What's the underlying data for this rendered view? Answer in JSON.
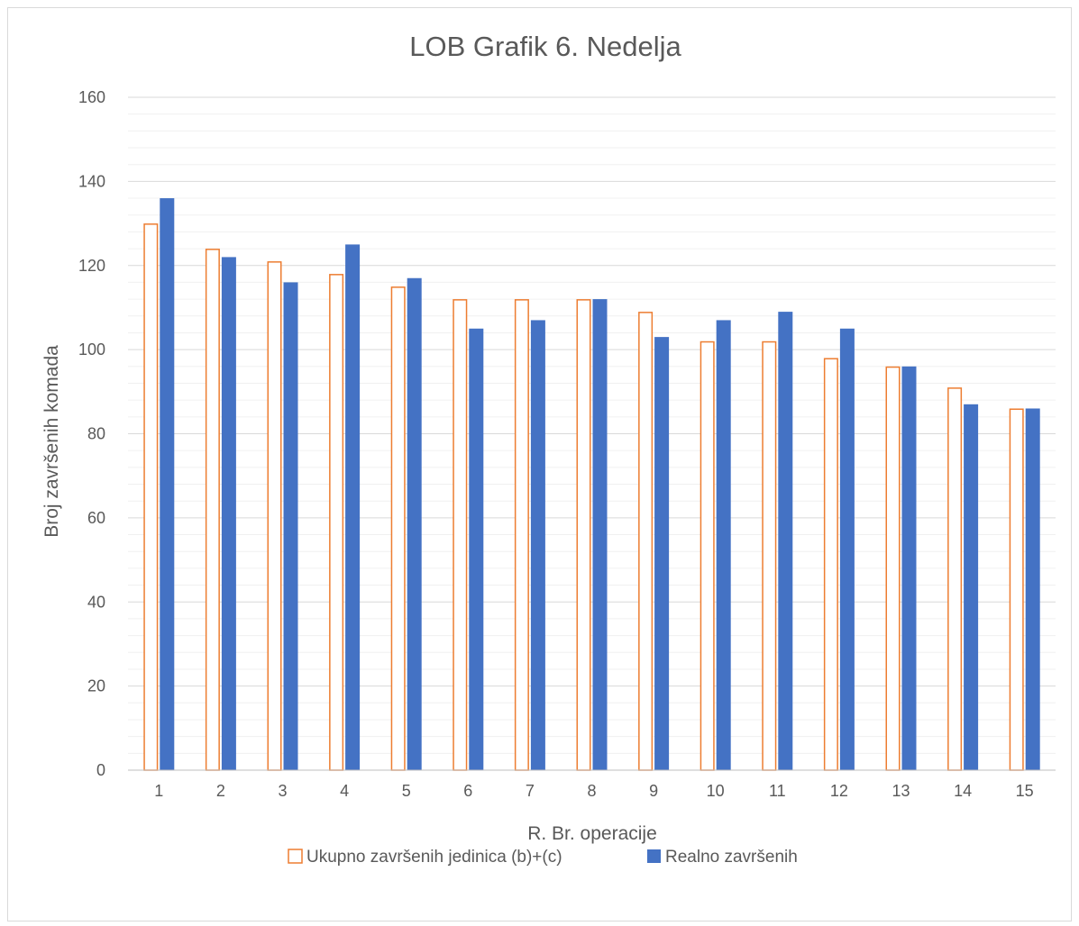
{
  "chart_data": {
    "type": "bar",
    "title": "LOB Grafik 6. Nedelja",
    "xlabel": "R. Br. operacije",
    "ylabel": "Broj završenih komada",
    "categories": [
      "1",
      "2",
      "3",
      "4",
      "5",
      "6",
      "7",
      "8",
      "9",
      "10",
      "11",
      "12",
      "13",
      "14",
      "15"
    ],
    "ylim": [
      0,
      160
    ],
    "yticks": [
      "0",
      "20",
      "40",
      "60",
      "80",
      "100",
      "120",
      "140",
      "160"
    ],
    "grid": true,
    "legend_position": "bottom",
    "series": [
      {
        "name": "Ukupno završenih jedinica (b)+(c)",
        "values": [
          130,
          124,
          121,
          118,
          115,
          112,
          112,
          112,
          109,
          102,
          102,
          98,
          96,
          91,
          86
        ],
        "style": "outline",
        "color": "#ED7D31"
      },
      {
        "name": "Realno završenih",
        "values": [
          136,
          122,
          116,
          125,
          117,
          105,
          107,
          112,
          103,
          107,
          109,
          105,
          96,
          87,
          86
        ],
        "style": "filled",
        "color": "#4472C4"
      }
    ]
  }
}
